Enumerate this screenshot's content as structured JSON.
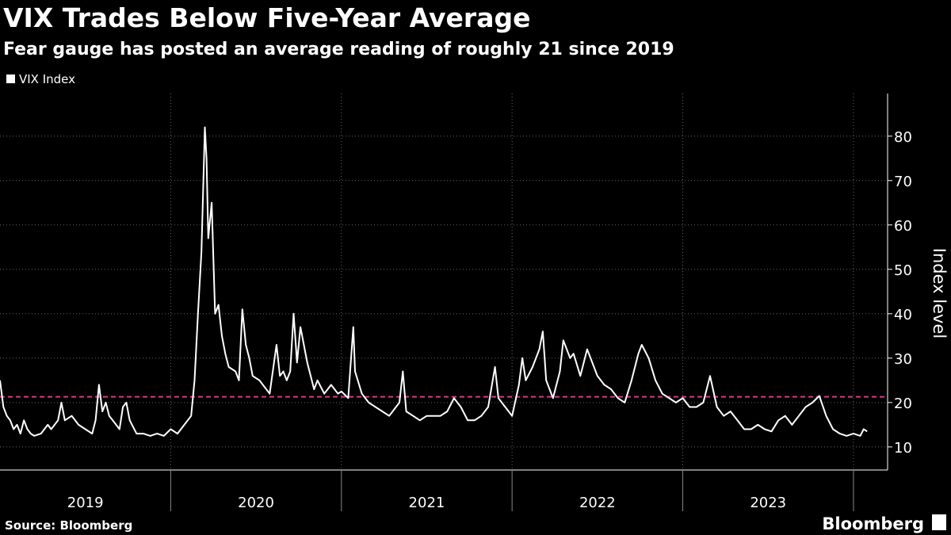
{
  "chart_data": {
    "type": "line",
    "title": "VIX Trades Below Five-Year Average",
    "subtitle": "Fear gauge has posted an average reading of roughly 21 since 2019",
    "y_label": "Index level",
    "source": "Source: Bloomberg",
    "brand": "Bloomberg",
    "legend_position": "top-left",
    "xlim": [
      2019.0,
      2024.2
    ],
    "xticks": [
      {
        "value": 2019.5,
        "label": "2019"
      },
      {
        "value": 2020.5,
        "label": "2020"
      },
      {
        "value": 2021.5,
        "label": "2021"
      },
      {
        "value": 2022.5,
        "label": "2022"
      },
      {
        "value": 2023.5,
        "label": "2023"
      }
    ],
    "xgrid": [
      2020,
      2021,
      2022,
      2023,
      2024
    ],
    "ylim": [
      4.8,
      89.6
    ],
    "yticks": [
      10,
      20,
      30,
      40,
      50,
      60,
      70,
      80
    ],
    "grid": true,
    "reference_line": {
      "value": 21.3,
      "color": "#e0338b"
    },
    "series": [
      {
        "name": "VIX Index",
        "color": "#ffffff",
        "x": [
          2019.0,
          2019.02,
          2019.04,
          2019.06,
          2019.08,
          2019.1,
          2019.12,
          2019.14,
          2019.16,
          2019.18,
          2019.2,
          2019.24,
          2019.28,
          2019.3,
          2019.34,
          2019.36,
          2019.38,
          2019.42,
          2019.46,
          2019.5,
          2019.54,
          2019.56,
          2019.58,
          2019.6,
          2019.62,
          2019.64,
          2019.66,
          2019.7,
          2019.72,
          2019.74,
          2019.76,
          2019.8,
          2019.84,
          2019.88,
          2019.92,
          2019.96,
          2020.0,
          2020.04,
          2020.08,
          2020.12,
          2020.14,
          2020.16,
          2020.18,
          2020.2,
          2020.21,
          2020.22,
          2020.24,
          2020.26,
          2020.28,
          2020.3,
          2020.32,
          2020.34,
          2020.38,
          2020.4,
          2020.42,
          2020.44,
          2020.46,
          2020.48,
          2020.52,
          2020.54,
          2020.58,
          2020.62,
          2020.64,
          2020.66,
          2020.68,
          2020.7,
          2020.72,
          2020.74,
          2020.76,
          2020.78,
          2020.8,
          2020.82,
          2020.84,
          2020.86,
          2020.9,
          2020.94,
          2020.98,
          2021.0,
          2021.04,
          2021.07,
          2021.08,
          2021.12,
          2021.16,
          2021.2,
          2021.24,
          2021.28,
          2021.3,
          2021.34,
          2021.36,
          2021.38,
          2021.42,
          2021.46,
          2021.5,
          2021.54,
          2021.58,
          2021.62,
          2021.66,
          2021.7,
          2021.74,
          2021.78,
          2021.82,
          2021.86,
          2021.9,
          2021.92,
          2021.96,
          2022.0,
          2022.04,
          2022.06,
          2022.08,
          2022.12,
          2022.16,
          2022.18,
          2022.2,
          2022.24,
          2022.28,
          2022.3,
          2022.34,
          2022.36,
          2022.4,
          2022.44,
          2022.48,
          2022.5,
          2022.54,
          2022.58,
          2022.62,
          2022.66,
          2022.7,
          2022.74,
          2022.76,
          2022.8,
          2022.84,
          2022.88,
          2022.92,
          2022.96,
          2023.0,
          2023.04,
          2023.08,
          2023.12,
          2023.16,
          2023.2,
          2023.24,
          2023.28,
          2023.32,
          2023.36,
          2023.4,
          2023.44,
          2023.48,
          2023.52,
          2023.56,
          2023.6,
          2023.64,
          2023.68,
          2023.72,
          2023.76,
          2023.8,
          2023.84,
          2023.88,
          2023.92,
          2023.96,
          2024.0,
          2024.04,
          2024.06,
          2024.08
        ],
        "values": [
          25,
          19,
          17,
          16,
          14,
          15,
          13,
          16,
          14,
          13,
          12.5,
          13,
          15,
          14,
          16,
          20,
          16,
          17,
          15,
          14,
          13,
          16,
          24,
          18,
          20,
          17,
          16,
          14,
          19,
          20,
          16,
          13,
          13,
          12.5,
          13,
          12.5,
          14,
          13,
          15,
          17,
          25,
          40,
          54,
          82,
          75,
          57,
          65,
          40,
          42,
          35,
          31,
          28,
          27,
          25,
          41,
          33,
          30,
          26,
          25,
          24,
          22,
          33,
          26,
          27,
          25,
          27,
          40,
          29,
          37,
          33,
          29,
          26,
          23,
          25,
          22,
          24,
          22,
          22.5,
          21,
          37,
          27,
          22,
          20,
          19,
          18,
          17,
          18,
          20,
          27,
          18,
          17,
          16,
          17,
          17,
          17,
          18,
          21,
          19,
          16,
          16,
          17,
          19,
          28,
          21,
          19,
          17,
          24,
          30,
          25,
          28,
          32,
          36,
          25,
          21,
          27,
          34,
          30,
          31,
          26,
          32,
          28,
          26,
          24,
          23,
          21,
          20,
          25,
          31,
          33,
          30,
          25,
          22,
          21,
          20,
          21,
          19,
          19,
          20,
          26,
          19,
          17,
          18,
          16,
          14,
          14,
          15,
          14,
          13.5,
          16,
          17,
          15,
          17,
          19,
          20,
          21.5,
          17,
          14,
          13,
          12.5,
          13,
          12.5,
          14,
          13.5
        ]
      }
    ]
  }
}
